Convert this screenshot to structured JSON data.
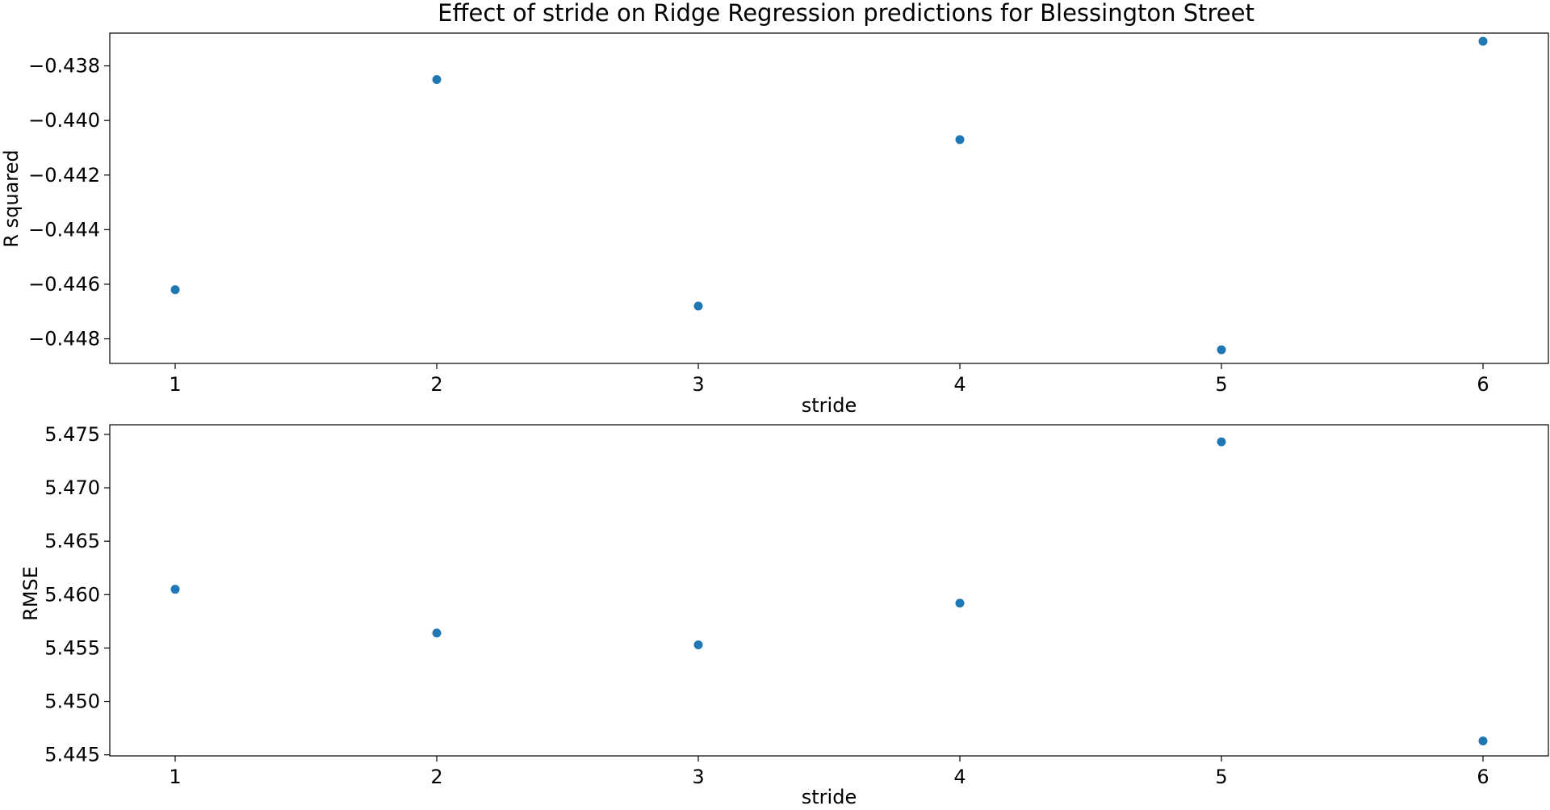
{
  "title": "Effect of stride on Ridge Regression predictions for Blessington Street",
  "marker_color": "#1f77b4",
  "chart_data": [
    {
      "type": "scatter",
      "xlabel": "stride",
      "ylabel": "R squared",
      "xlim": [
        0.75,
        6.25
      ],
      "ylim": [
        -0.4489,
        -0.4368
      ],
      "xticks": [
        1,
        2,
        3,
        4,
        5,
        6
      ],
      "x_tick_labels": [
        "1",
        "2",
        "3",
        "4",
        "5",
        "6"
      ],
      "yticks": [
        -0.448,
        -0.446,
        -0.444,
        -0.442,
        -0.44,
        -0.438
      ],
      "y_tick_labels": [
        "−0.448",
        "−0.446",
        "−0.444",
        "−0.442",
        "−0.440",
        "−0.438"
      ],
      "x": [
        1,
        2,
        3,
        4,
        5,
        6
      ],
      "y": [
        -0.4462,
        -0.4385,
        -0.4468,
        -0.4407,
        -0.4484,
        -0.4371
      ]
    },
    {
      "type": "scatter",
      "xlabel": "stride",
      "ylabel": "RMSE",
      "xlim": [
        0.75,
        6.25
      ],
      "ylim": [
        5.4449,
        5.4759
      ],
      "xticks": [
        1,
        2,
        3,
        4,
        5,
        6
      ],
      "x_tick_labels": [
        "1",
        "2",
        "3",
        "4",
        "5",
        "6"
      ],
      "yticks": [
        5.445,
        5.45,
        5.455,
        5.46,
        5.465,
        5.47,
        5.475
      ],
      "y_tick_labels": [
        "5.445",
        "5.450",
        "5.455",
        "5.460",
        "5.465",
        "5.470",
        "5.475"
      ],
      "x": [
        1,
        2,
        3,
        4,
        5,
        6
      ],
      "y": [
        5.4605,
        5.4564,
        5.4553,
        5.4592,
        5.4743,
        5.4463
      ]
    }
  ]
}
